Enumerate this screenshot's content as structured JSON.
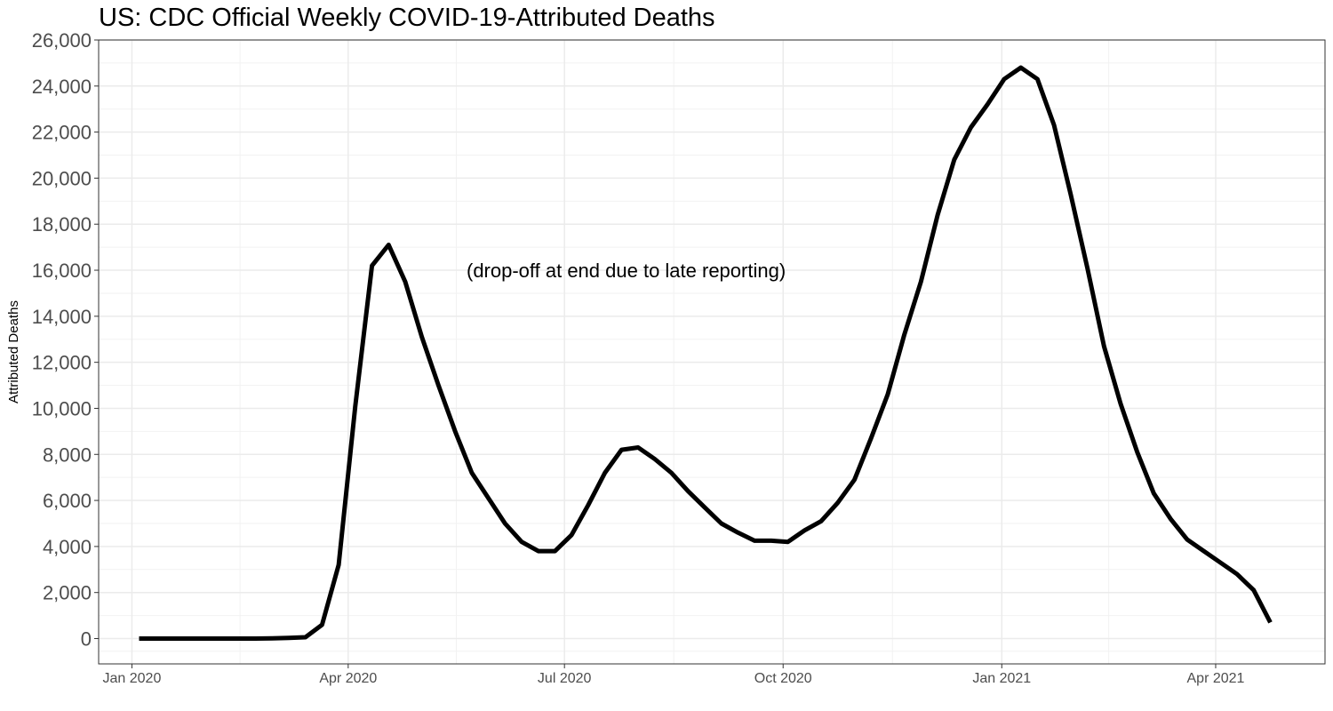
{
  "chart_data": {
    "type": "line",
    "title": "US: CDC Official Weekly COVID-19-Attributed Deaths",
    "xlabel": "",
    "ylabel": "Attributed Deaths",
    "annotation": "(drop-off at end due to late reporting)",
    "ylim": [
      -1100,
      26000
    ],
    "xlim": [
      "2019-12-18",
      "2021-05-17"
    ],
    "y_ticks": [
      0,
      2000,
      4000,
      6000,
      8000,
      10000,
      12000,
      14000,
      16000,
      18000,
      20000,
      22000,
      24000,
      26000
    ],
    "y_tick_labels": [
      "0",
      "2,000",
      "4,000",
      "6,000",
      "8,000",
      "10,000",
      "12,000",
      "14,000",
      "16,000",
      "18,000",
      "20,000",
      "22,000",
      "24,000",
      "26,000"
    ],
    "x_ticks": [
      "2020-01-01",
      "2020-04-01",
      "2020-07-01",
      "2020-10-01",
      "2021-01-01",
      "2021-04-01"
    ],
    "x_tick_labels": [
      "Jan 2020",
      "Apr 2020",
      "Jul 2020",
      "Oct 2020",
      "Jan 2021",
      "Apr 2021"
    ],
    "grid": true,
    "color": "#000000",
    "x": [
      "2020-01-04",
      "2020-01-11",
      "2020-01-18",
      "2020-01-25",
      "2020-02-01",
      "2020-02-08",
      "2020-02-15",
      "2020-02-22",
      "2020-02-29",
      "2020-03-07",
      "2020-03-14",
      "2020-03-21",
      "2020-03-28",
      "2020-04-04",
      "2020-04-11",
      "2020-04-18",
      "2020-04-25",
      "2020-05-02",
      "2020-05-09",
      "2020-05-16",
      "2020-05-23",
      "2020-05-30",
      "2020-06-06",
      "2020-06-13",
      "2020-06-20",
      "2020-06-27",
      "2020-07-04",
      "2020-07-11",
      "2020-07-18",
      "2020-07-25",
      "2020-08-01",
      "2020-08-08",
      "2020-08-15",
      "2020-08-22",
      "2020-08-29",
      "2020-09-05",
      "2020-09-12",
      "2020-09-19",
      "2020-09-26",
      "2020-10-03",
      "2020-10-10",
      "2020-10-17",
      "2020-10-24",
      "2020-10-31",
      "2020-11-07",
      "2020-11-14",
      "2020-11-21",
      "2020-11-28",
      "2020-12-05",
      "2020-12-12",
      "2020-12-19",
      "2020-12-26",
      "2021-01-02",
      "2021-01-09",
      "2021-01-16",
      "2021-01-23",
      "2021-01-30",
      "2021-02-06",
      "2021-02-13",
      "2021-02-20",
      "2021-02-27",
      "2021-03-06",
      "2021-03-13",
      "2021-03-20",
      "2021-03-27",
      "2021-04-03",
      "2021-04-10",
      "2021-04-17",
      "2021-04-24"
    ],
    "values": [
      0,
      0,
      0,
      0,
      0,
      0,
      0,
      0,
      10,
      30,
      60,
      600,
      3200,
      10100,
      16200,
      17100,
      15500,
      13100,
      11000,
      9000,
      7200,
      6100,
      5000,
      4200,
      3800,
      3800,
      4500,
      5800,
      7200,
      8200,
      8300,
      7800,
      7200,
      6400,
      5700,
      5000,
      4600,
      4250,
      4250,
      4200,
      4700,
      5100,
      5900,
      6900,
      8700,
      10600,
      13200,
      15500,
      18400,
      20800,
      22200,
      23200,
      24300,
      24800,
      24300,
      22300,
      19300,
      16100,
      12700,
      10200,
      8100,
      6300,
      5200,
      4300,
      3800,
      3300,
      2800,
      2100,
      700
    ]
  }
}
